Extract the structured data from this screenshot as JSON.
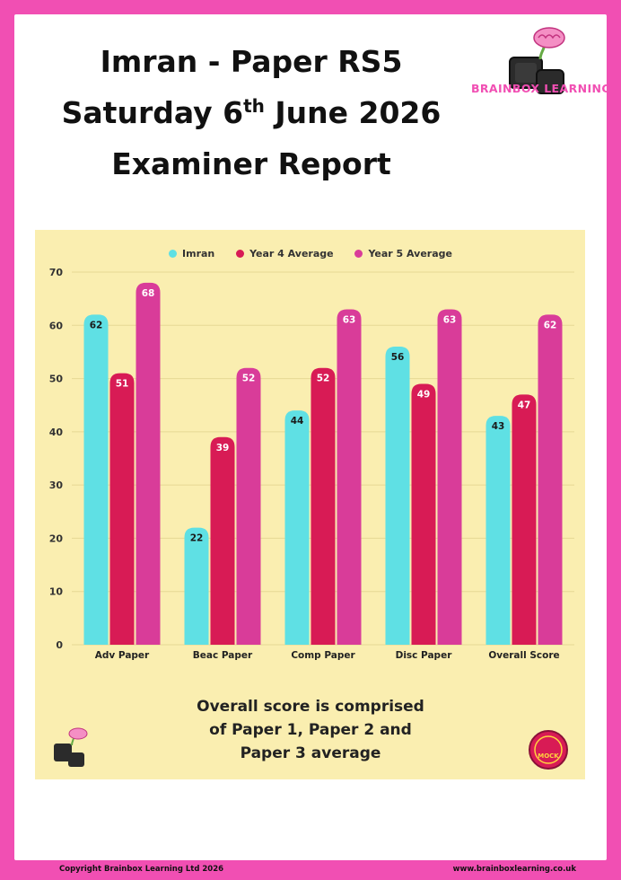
{
  "header": {
    "line1": "Imran  - Paper RS5",
    "line2_pre": "Saturday 6",
    "line2_sup": "th",
    "line2_post": " June 2026",
    "line3": "Examiner Report"
  },
  "brand": {
    "logo_text": "BRAINBOX LEARNING",
    "badge_text": "MOCK"
  },
  "caption": {
    "line1": "Overall score is comprised",
    "line2": "of Paper 1, Paper 2 and",
    "line3": "Paper 3 average"
  },
  "footer": {
    "copyright": "Copyright Brainbox Learning Ltd 2026",
    "website": "www.brainboxlearning.co.uk"
  },
  "colors": {
    "imran": "#5fe0e4",
    "year4": "#d81b55",
    "year5": "#d93c99",
    "panel": "#faeeb0",
    "border": "#f14fb3"
  },
  "chart_data": {
    "type": "bar",
    "categories": [
      "Adv Paper",
      "Beac Paper",
      "Comp Paper",
      "Disc Paper",
      "Overall Score"
    ],
    "series": [
      {
        "name": "Imran",
        "values": [
          62,
          22,
          44,
          56,
          43
        ]
      },
      {
        "name": "Year 4 Average",
        "values": [
          51,
          39,
          52,
          49,
          47
        ]
      },
      {
        "name": "Year 5 Average",
        "values": [
          68,
          52,
          63,
          63,
          62
        ]
      }
    ],
    "yticks": [
      0,
      10,
      20,
      30,
      40,
      50,
      60,
      70
    ],
    "ylim": [
      0,
      70
    ],
    "grid": true,
    "legend": "top-center"
  }
}
